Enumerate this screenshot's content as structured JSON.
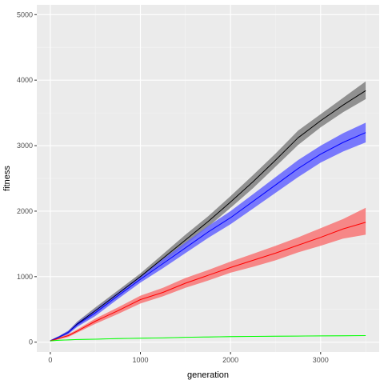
{
  "chart_data": {
    "type": "line",
    "title": "",
    "xlabel": "generation",
    "ylabel": "fitness",
    "xlim": [
      -150,
      3650
    ],
    "ylim": [
      -150,
      5150
    ],
    "x_ticks": [
      0,
      1000,
      2000,
      3000
    ],
    "y_ticks": [
      0,
      1000,
      2000,
      3000,
      4000,
      5000
    ],
    "x_tick_labels": [
      "0",
      "1000",
      "2000",
      "3000"
    ],
    "y_tick_labels": [
      "0",
      "1000",
      "2000",
      "3000",
      "4000",
      "5000"
    ],
    "grid": true,
    "legend": "none",
    "x": [
      0,
      100,
      200,
      300,
      500,
      750,
      1000,
      1250,
      1500,
      1750,
      2000,
      2250,
      2500,
      2750,
      3000,
      3250,
      3500
    ],
    "series": [
      {
        "color": "#000000",
        "band_color": "#808080",
        "values": [
          20,
          80,
          150,
          280,
          480,
          740,
          1000,
          1280,
          1560,
          1840,
          2140,
          2450,
          2780,
          3120,
          3380,
          3620,
          3840
        ],
        "lower": [
          10,
          65,
          125,
          245,
          430,
          690,
          950,
          1215,
          1480,
          1760,
          2050,
          2350,
          2680,
          3010,
          3280,
          3510,
          3710
        ],
        "upper": [
          30,
          95,
          175,
          315,
          530,
          790,
          1050,
          1345,
          1640,
          1920,
          2230,
          2550,
          2880,
          3230,
          3480,
          3730,
          3980
        ]
      },
      {
        "color": "#0000ff",
        "band_color": "#6464ff",
        "values": [
          20,
          80,
          150,
          270,
          450,
          710,
          960,
          1200,
          1440,
          1680,
          1900,
          2150,
          2400,
          2650,
          2870,
          3050,
          3200
        ],
        "lower": [
          10,
          65,
          125,
          235,
          400,
          660,
          910,
          1130,
          1360,
          1590,
          1800,
          2040,
          2280,
          2520,
          2740,
          2910,
          3050
        ],
        "upper": [
          30,
          95,
          175,
          305,
          500,
          760,
          1010,
          1270,
          1520,
          1770,
          2000,
          2260,
          2520,
          2780,
          3000,
          3190,
          3350
        ]
      },
      {
        "color": "#ff0000",
        "band_color": "#f87676",
        "values": [
          20,
          60,
          100,
          170,
          320,
          480,
          650,
          760,
          900,
          1020,
          1140,
          1250,
          1360,
          1480,
          1600,
          1730,
          1830
        ],
        "lower": [
          10,
          45,
          80,
          145,
          280,
          430,
          590,
          700,
          830,
          940,
          1060,
          1150,
          1250,
          1370,
          1470,
          1580,
          1640
        ],
        "upper": [
          30,
          75,
          120,
          195,
          360,
          530,
          710,
          830,
          980,
          1100,
          1230,
          1350,
          1470,
          1600,
          1740,
          1880,
          2050
        ]
      },
      {
        "color": "#00ff00",
        "band_color": "#00ff00",
        "values": [
          20,
          30,
          35,
          40,
          45,
          55,
          60,
          65,
          75,
          80,
          85,
          88,
          90,
          93,
          96,
          98,
          100
        ],
        "lower": [
          15,
          25,
          30,
          35,
          40,
          50,
          55,
          60,
          70,
          75,
          80,
          83,
          85,
          88,
          91,
          93,
          95
        ],
        "upper": [
          25,
          35,
          40,
          45,
          50,
          60,
          65,
          70,
          80,
          85,
          90,
          93,
          95,
          98,
          101,
          103,
          105
        ]
      }
    ]
  }
}
